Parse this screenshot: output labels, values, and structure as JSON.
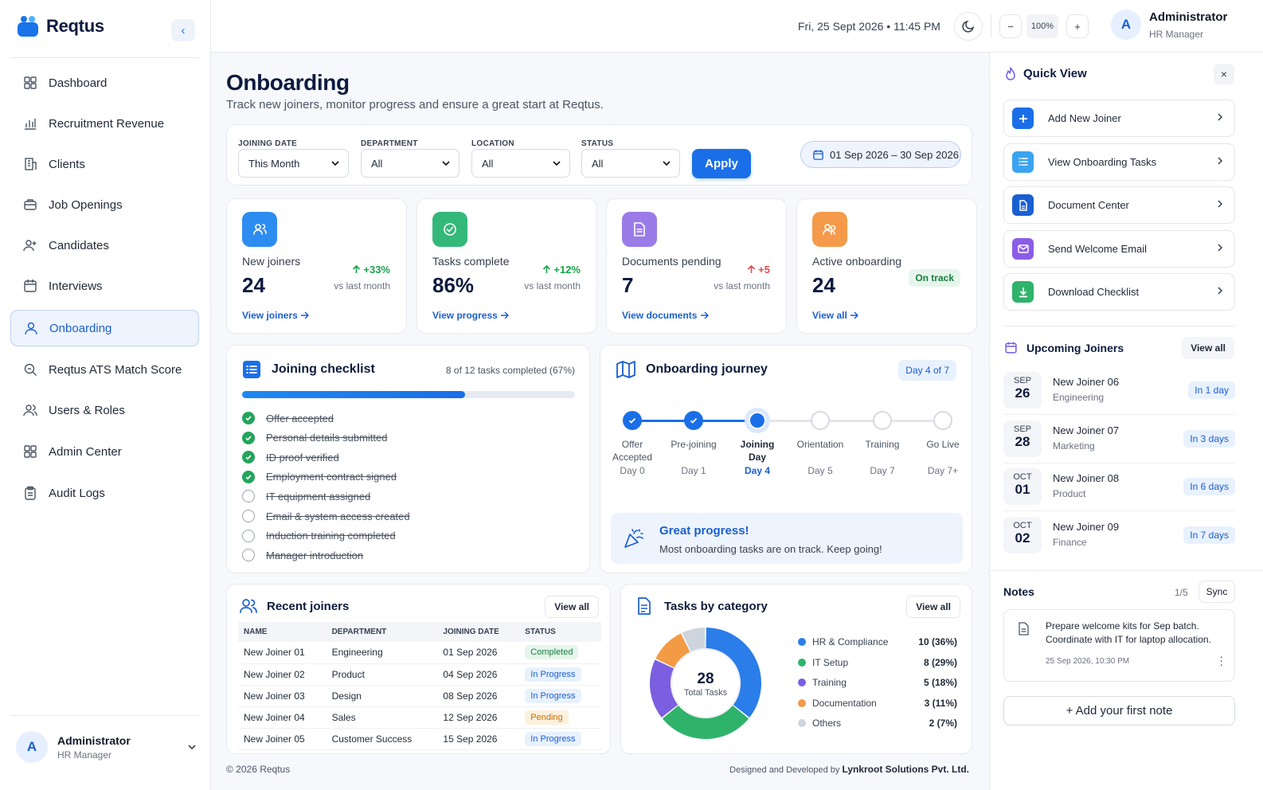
{
  "app": {
    "name": "Reqtus"
  },
  "sidebar": {
    "items": [
      {
        "label": "Dashboard",
        "icon": "grid-icon"
      },
      {
        "label": "Recruitment Revenue",
        "icon": "bar-chart-icon"
      },
      {
        "label": "Clients",
        "icon": "building-icon"
      },
      {
        "label": "Job Openings",
        "icon": "briefcase-icon"
      },
      {
        "label": "Candidates",
        "icon": "user-plus-icon"
      },
      {
        "label": "Interviews",
        "icon": "calendar-icon"
      },
      {
        "label": "Onboarding",
        "icon": "user-icon",
        "active": true
      },
      {
        "label": "Reqtus ATS Match Score",
        "icon": "search-icon"
      },
      {
        "label": "Users & Roles",
        "icon": "users-icon"
      },
      {
        "label": "Admin Center",
        "icon": "grid-icon"
      },
      {
        "label": "Audit Logs",
        "icon": "clipboard-icon"
      }
    ],
    "user": {
      "initial": "A",
      "name": "Administrator",
      "role": "HR Manager"
    }
  },
  "topbar": {
    "datetime": "Fri, 25 Sept 2026 • 11:45 PM",
    "zoom": "100%",
    "zoom_out": "−",
    "zoom_in": "+",
    "user": {
      "initial": "A",
      "name": "Administrator",
      "role": "HR Manager"
    }
  },
  "page": {
    "title": "Onboarding",
    "subtitle": "Track new joiners, monitor progress and ensure a great start at Reqtus."
  },
  "filters": {
    "joining_date": {
      "label": "JOINING DATE",
      "value": "This Month"
    },
    "department": {
      "label": "DEPARTMENT",
      "value": "All"
    },
    "location": {
      "label": "LOCATION",
      "value": "All"
    },
    "status": {
      "label": "STATUS",
      "value": "All"
    },
    "apply": "Apply",
    "date_range": "01 Sep 2026 – 30 Sep 2026"
  },
  "kpis": [
    {
      "label": "New joiners",
      "value": "24",
      "delta": "+33%",
      "vs": "vs last month",
      "link": "View joiners",
      "color": "#2d8cf0"
    },
    {
      "label": "Tasks complete",
      "value": "86%",
      "delta": "+12%",
      "vs": "vs last month",
      "link": "View progress",
      "color": "#34b87a"
    },
    {
      "label": "Documents pending",
      "value": "7",
      "delta": "+5",
      "vs": "vs last month",
      "link": "View documents",
      "color": "#9b7be8"
    },
    {
      "label": "Active onboarding",
      "value": "24",
      "badge": "On track",
      "link": "View all",
      "color": "#f59a4a"
    }
  ],
  "checklist": {
    "title": "Joining checklist",
    "summary": "8 of 12 tasks completed (67%)",
    "progress": 0.67,
    "items": [
      {
        "label": "Offer accepted",
        "done": true
      },
      {
        "label": "Personal details submitted",
        "done": true
      },
      {
        "label": "ID proof verified",
        "done": true
      },
      {
        "label": "Employment contract signed",
        "done": true
      },
      {
        "label": "IT equipment assigned",
        "done": false
      },
      {
        "label": "Email & system access created",
        "done": false
      },
      {
        "label": "Induction training completed",
        "done": false
      },
      {
        "label": "Manager introduction",
        "done": false
      }
    ]
  },
  "journey": {
    "title": "Onboarding journey",
    "badge": "Day 4 of 7",
    "steps": [
      {
        "l1": "Offer",
        "l2": "Accepted",
        "day": "Day 0",
        "state": "done"
      },
      {
        "l1": "Pre-joining",
        "l2": "",
        "day": "Day 1",
        "state": "done"
      },
      {
        "l1": "Joining",
        "l2": "Day",
        "day": "Day 4",
        "state": "current"
      },
      {
        "l1": "Orientation",
        "l2": "",
        "day": "Day 5",
        "state": "todo"
      },
      {
        "l1": "Training",
        "l2": "",
        "day": "Day 7",
        "state": "todo"
      },
      {
        "l1": "Go Live",
        "l2": "",
        "day": "Day 7+",
        "state": "todo"
      }
    ],
    "banner_title": "Great progress!",
    "banner_text": "Most onboarding tasks are on track. Keep going!"
  },
  "recent": {
    "title": "Recent joiners",
    "view_all": "View all",
    "headers": [
      "NAME",
      "DEPARTMENT",
      "JOINING DATE",
      "STATUS"
    ],
    "rows": [
      {
        "name": "New Joiner 01",
        "dept": "Engineering",
        "date": "01 Sep 2026",
        "status": "Completed"
      },
      {
        "name": "New Joiner 02",
        "dept": "Product",
        "date": "04 Sep 2026",
        "status": "In Progress"
      },
      {
        "name": "New Joiner 03",
        "dept": "Design",
        "date": "08 Sep 2026",
        "status": "In Progress"
      },
      {
        "name": "New Joiner 04",
        "dept": "Sales",
        "date": "12 Sep 2026",
        "status": "Pending"
      },
      {
        "name": "New Joiner 05",
        "dept": "Customer Success",
        "date": "15 Sep 2026",
        "status": "In Progress"
      }
    ]
  },
  "tasks": {
    "title": "Tasks by category",
    "view_all": "View all",
    "total": "28",
    "total_label": "Total Tasks",
    "categories": [
      {
        "name": "HR & Compliance",
        "value": 10,
        "label": "10 (36%)",
        "color": "#2b7de9"
      },
      {
        "name": "IT Setup",
        "value": 8,
        "label": "8 (29%)",
        "color": "#2fb36b"
      },
      {
        "name": "Training",
        "value": 5,
        "label": "5 (18%)",
        "color": "#7b5fe0"
      },
      {
        "name": "Documentation",
        "value": 3,
        "label": "3 (11%)",
        "color": "#f39a45"
      },
      {
        "name": "Others",
        "value": 2,
        "label": "2 (7%)",
        "color": "#cfd5de"
      }
    ]
  },
  "footer": {
    "copyright": "© 2026 Reqtus",
    "credit_prefix": "Designed and Developed by",
    "credit_company": "Lynkroot Solutions Pvt. Ltd."
  },
  "quick_view": {
    "title": "Quick View",
    "close": "×",
    "items": [
      {
        "label": "Add New Joiner",
        "icon": "plus-icon",
        "color": "#1a6fe8"
      },
      {
        "label": "View Onboarding Tasks",
        "icon": "list-icon",
        "color": "#3ba3f0"
      },
      {
        "label": "Document Center",
        "icon": "document-icon",
        "color": "#1a5fd0"
      },
      {
        "label": "Send Welcome Email",
        "icon": "mail-icon",
        "color": "#8b5ce8"
      },
      {
        "label": "Download Checklist",
        "icon": "download-icon",
        "color": "#2fb36b"
      }
    ]
  },
  "upcoming": {
    "title": "Upcoming Joiners",
    "view_all": "View all",
    "items": [
      {
        "month": "SEP",
        "day": "26",
        "name": "New Joiner 06",
        "dept": "Engineering",
        "when": "In 1 day"
      },
      {
        "month": "SEP",
        "day": "28",
        "name": "New Joiner 07",
        "dept": "Marketing",
        "when": "In 3 days"
      },
      {
        "month": "OCT",
        "day": "01",
        "name": "New Joiner 08",
        "dept": "Product",
        "when": "In 6 days"
      },
      {
        "month": "OCT",
        "day": "02",
        "name": "New Joiner 09",
        "dept": "Finance",
        "when": "In 7 days"
      }
    ]
  },
  "notes": {
    "title": "Notes",
    "count": "1/5",
    "sync": "Sync",
    "note_text": "Prepare welcome kits for Sep batch. Coordinate with IT for laptop allocation.",
    "note_time": "25 Sep 2026, 10:30 PM",
    "add": "+ Add your first note"
  }
}
